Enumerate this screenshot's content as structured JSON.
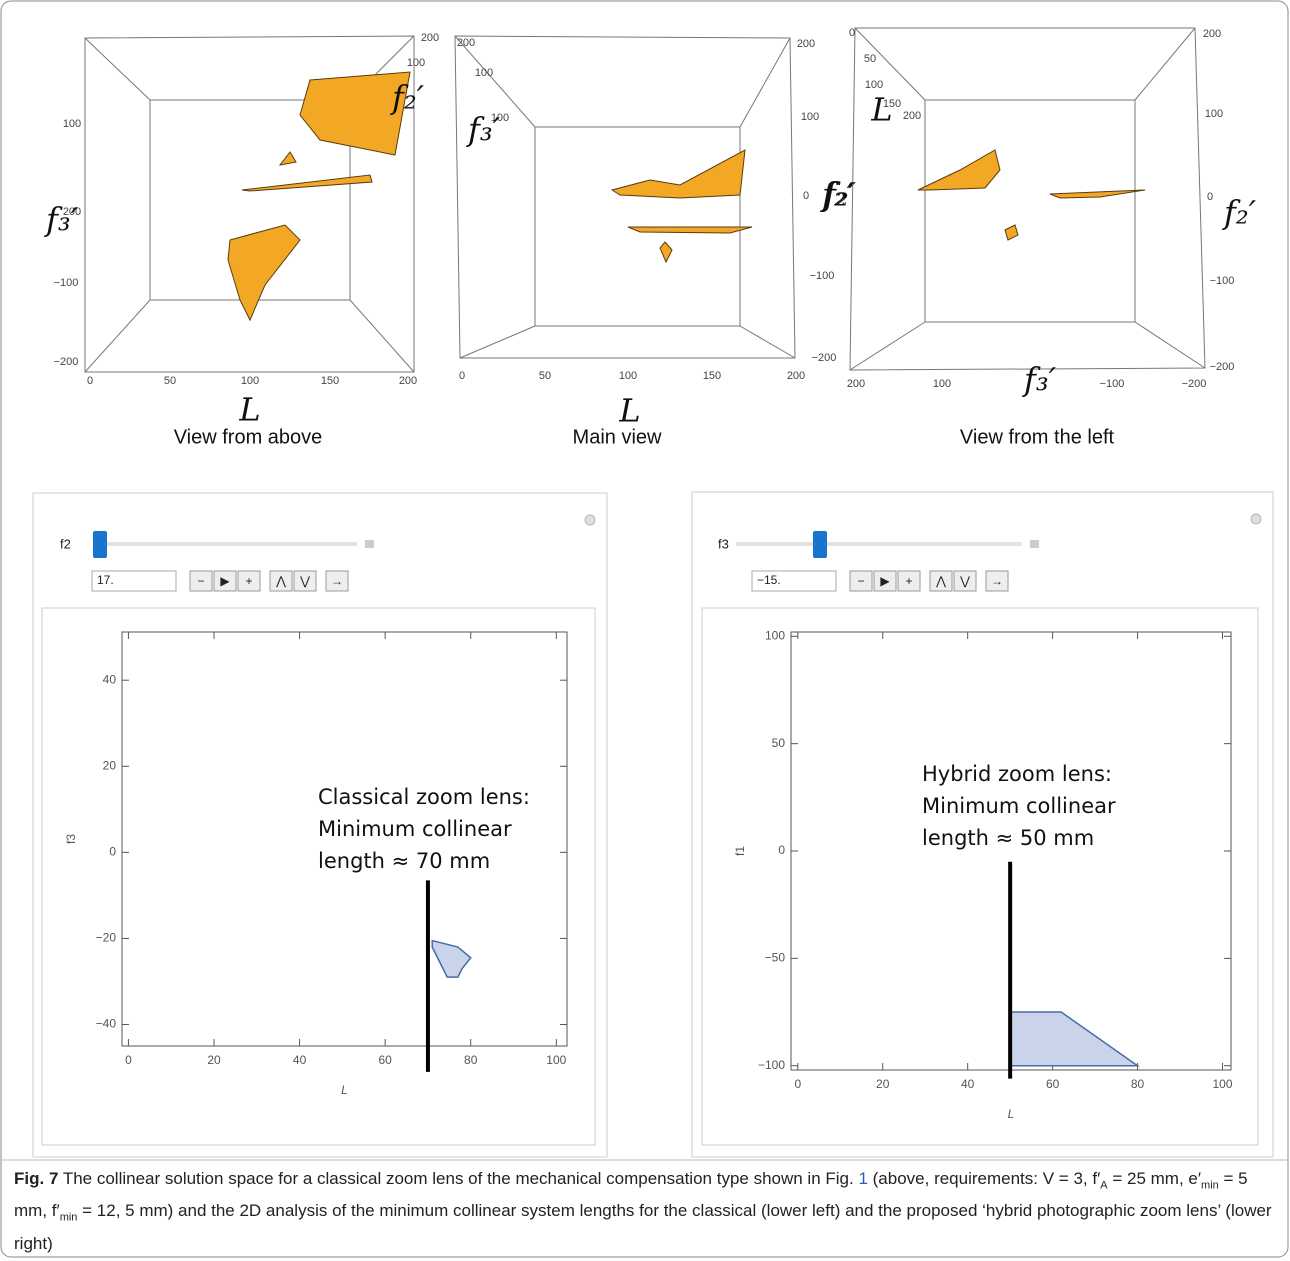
{
  "views": [
    {
      "caption": "View from above",
      "axis_labels": [
        "f₃′",
        "f₂′",
        "L"
      ],
      "ticks": [
        "200",
        "100",
        "−100",
        "−200",
        "0",
        "50",
        "100",
        "150",
        "200",
        "200",
        "100"
      ]
    },
    {
      "caption": "Main view",
      "axis_labels": [
        "f₃′",
        "f₂′",
        "L"
      ],
      "ticks": [
        "200",
        "100",
        "100",
        "0",
        "50",
        "100",
        "150",
        "200",
        "200",
        "100",
        "0",
        "−100",
        "−200"
      ]
    },
    {
      "caption": "View from the left",
      "axis_labels": [
        "L",
        "f₂′",
        "f₂′",
        "f₃′"
      ],
      "ticks": [
        "0",
        "50",
        "100",
        "150",
        "200",
        "200",
        "100",
        "0",
        "−100",
        "−200",
        "200",
        "100",
        "−100",
        "−200"
      ]
    }
  ],
  "panels": [
    {
      "slider_label": "f2",
      "input": "17.",
      "plot": {
        "xlabel": "L",
        "ylabel": "f3",
        "xlim": [
          -1.5,
          102.5
        ],
        "ylim": [
          -45,
          51.2
        ],
        "xticks": [
          0,
          20,
          40,
          60,
          80,
          100
        ],
        "yticks": [
          {
            "value": -40,
            "label": "−40"
          },
          {
            "value": -20,
            "label": "−20"
          },
          0,
          20,
          40
        ],
        "region": {
          "x": [
            71,
            77,
            80,
            78,
            77,
            74.5,
            71
          ],
          "y": [
            -20.5,
            -22,
            -24.5,
            -27,
            -29,
            -29,
            -22
          ]
        },
        "line": {
          "x": 70,
          "y": [
            -6.5,
            -51
          ]
        },
        "annotation": [
          "Classical zoom lens:",
          "Minimum collinear",
          "length ≈ 70 mm"
        ]
      }
    },
    {
      "slider_label": "f3",
      "input": "−15.",
      "plot": {
        "xlabel": "L",
        "ylabel": "f1",
        "xlim": [
          -1.6,
          102
        ],
        "ylim": [
          -102,
          102
        ],
        "xticks": [
          0,
          20,
          40,
          60,
          80,
          100
        ],
        "yticks": [
          {
            "value": -100,
            "label": "−100"
          },
          {
            "value": -50,
            "label": "−50"
          },
          0,
          50,
          100
        ],
        "region": {
          "x": [
            50,
            62,
            80,
            50
          ],
          "y": [
            -75,
            -75,
            -100,
            -100
          ]
        },
        "line": {
          "x": 50,
          "y": [
            -5,
            -106
          ]
        },
        "annotation": [
          "Hybrid zoom lens:",
          "Minimum collinear",
          "length ≈ 50 mm"
        ]
      }
    }
  ],
  "caption": {
    "parts": [
      "Fig. 7",
      " The collinear solution space for a classical zoom lens of the mechanical compensation type shown in Fig. ",
      "1",
      " (above, requirements: V = 3, f′",
      "A",
      " = 25 mm, e′",
      "min",
      " = 5 mm, f′",
      "min",
      " = 12, 5 mm) and the 2D analysis of the minimum collinear system lengths for the classical (lower left) and the proposed ‘hybrid photographic zoom lens’ (lower right)"
    ]
  }
}
